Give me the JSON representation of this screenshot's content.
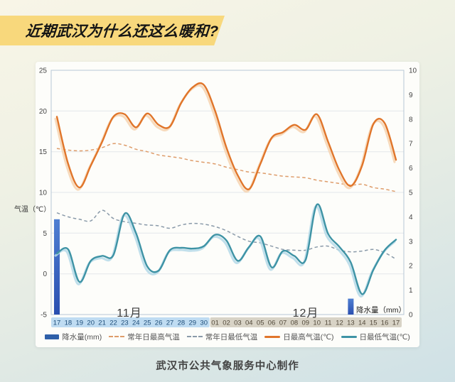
{
  "banner": {
    "title": "近期武汉为什么还这么暖和?"
  },
  "caption": "武汉市公共气象服务中心制作",
  "chart_data": {
    "type": "line",
    "title": "近期武汉为什么还这么暖和?",
    "categories": [
      "17",
      "18",
      "19",
      "20",
      "21",
      "22",
      "23",
      "24",
      "25",
      "26",
      "27",
      "28",
      "29",
      "30",
      "01",
      "02",
      "03",
      "04",
      "05",
      "06",
      "07",
      "08",
      "09",
      "10",
      "11",
      "12",
      "13",
      "14",
      "15",
      "16",
      "17"
    ],
    "november_count": 14,
    "month_labels": {
      "november": "11月",
      "december": "12月"
    },
    "y_left": {
      "label": "气温（℃）",
      "min": -5,
      "max": 25,
      "tick_step": 5
    },
    "y_right": {
      "label": "降水量（mm）",
      "min": 0,
      "max": 10,
      "tick_step": 1
    },
    "x_band": {
      "november_bg": "#bfdcf2",
      "november_text": "#1f4e79",
      "december_bg": "#d8d3c6",
      "december_text": "#52493a"
    },
    "grid_color": "#e4e7ea",
    "border_color": "#b7c6d5",
    "tick_text_color": "#444",
    "series": [
      {
        "name": "降水量(mm)",
        "kind": "bar",
        "axis": "right",
        "color_top": "#4f7fd2",
        "color_bottom": "#2a4fb0",
        "legend_color": "#2e5fa8",
        "values": [
          3.9,
          0,
          0,
          0,
          0,
          0,
          0,
          0,
          0,
          0,
          0,
          0,
          0,
          0,
          0,
          0,
          0,
          0,
          0,
          0,
          0,
          0,
          0,
          0,
          0,
          0,
          0.65,
          0,
          0,
          0,
          0
        ]
      },
      {
        "name": "常年日最高气温",
        "kind": "line",
        "style": "dashed",
        "axis": "left",
        "color": "#de9c6a",
        "values": [
          15.4,
          15.2,
          15.1,
          15.2,
          15.5,
          16.0,
          15.8,
          15.3,
          15.0,
          14.6,
          14.4,
          14.2,
          13.9,
          13.7,
          13.5,
          13.1,
          12.8,
          12.5,
          12.4,
          12.2,
          12.0,
          11.9,
          11.8,
          11.5,
          11.3,
          11.1,
          10.9,
          11.0,
          10.6,
          10.4,
          10.1
        ]
      },
      {
        "name": "常年日最低气温",
        "kind": "line",
        "style": "dashed",
        "axis": "left",
        "color": "#8a9aa9",
        "values": [
          7.5,
          7.0,
          6.7,
          6.5,
          7.8,
          6.8,
          6.4,
          6.2,
          6.0,
          5.9,
          5.6,
          6.0,
          6.2,
          6.1,
          5.8,
          5.3,
          4.6,
          4.0,
          3.8,
          3.4,
          3.0,
          2.9,
          2.9,
          3.3,
          3.4,
          2.9,
          2.7,
          2.8,
          3.0,
          2.6,
          1.8
        ]
      },
      {
        "name": "日最高气温(℃)",
        "kind": "line",
        "style": "solid",
        "axis": "left",
        "color": "#e0752a",
        "shadow": "#f6d3b0",
        "values": [
          19.3,
          13.5,
          10.6,
          13.3,
          16.2,
          19.3,
          19.6,
          18.0,
          19.7,
          18.3,
          18.1,
          21.0,
          22.9,
          23.2,
          20.0,
          15.5,
          12.1,
          10.4,
          13.5,
          16.7,
          17.4,
          18.3,
          17.7,
          19.6,
          16.2,
          12.7,
          10.8,
          13.3,
          18.4,
          18.5,
          14.0
        ]
      },
      {
        "name": "日最低气温(℃)",
        "kind": "line",
        "style": "solid",
        "axis": "left",
        "color": "#3e93a5",
        "shadow": "#b5d9e8",
        "values": [
          2.5,
          3.0,
          -1.0,
          1.6,
          2.2,
          2.3,
          7.4,
          5.0,
          0.9,
          0.4,
          2.9,
          3.2,
          3.1,
          3.4,
          4.8,
          4.1,
          1.6,
          3.3,
          4.6,
          0.8,
          2.8,
          2.2,
          1.7,
          8.5,
          4.9,
          3.3,
          1.4,
          -2.5,
          0.5,
          2.9,
          4.2
        ]
      }
    ]
  }
}
